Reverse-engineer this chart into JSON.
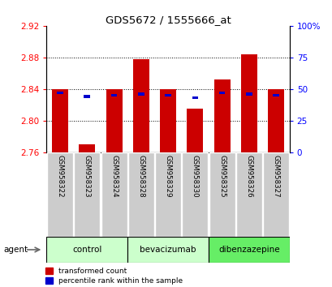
{
  "title": "GDS5672 / 1555666_at",
  "samples": [
    "GSM958322",
    "GSM958323",
    "GSM958324",
    "GSM958328",
    "GSM958329",
    "GSM958330",
    "GSM958325",
    "GSM958326",
    "GSM958327"
  ],
  "transformed_counts": [
    2.84,
    2.77,
    2.84,
    2.878,
    2.84,
    2.815,
    2.852,
    2.884,
    2.84
  ],
  "percentile_ranks": [
    47,
    44,
    45,
    46,
    45,
    43,
    47,
    46,
    45
  ],
  "groups": [
    {
      "name": "control",
      "indices": [
        0,
        1,
        2
      ],
      "color": "#ccffcc"
    },
    {
      "name": "bevacizumab",
      "indices": [
        3,
        4,
        5
      ],
      "color": "#ccffcc"
    },
    {
      "name": "dibenzazepine",
      "indices": [
        6,
        7,
        8
      ],
      "color": "#66ee66"
    }
  ],
  "ymin": 2.76,
  "ymax": 2.92,
  "yticks": [
    2.76,
    2.8,
    2.84,
    2.88,
    2.92
  ],
  "right_yticks": [
    0,
    25,
    50,
    75,
    100
  ],
  "bar_color": "#cc0000",
  "blue_color": "#0000cc",
  "bar_width": 0.6,
  "bar_base": 2.76,
  "grid_lines": [
    2.8,
    2.84,
    2.88
  ],
  "legend_labels": [
    "transformed count",
    "percentile rank within the sample"
  ]
}
